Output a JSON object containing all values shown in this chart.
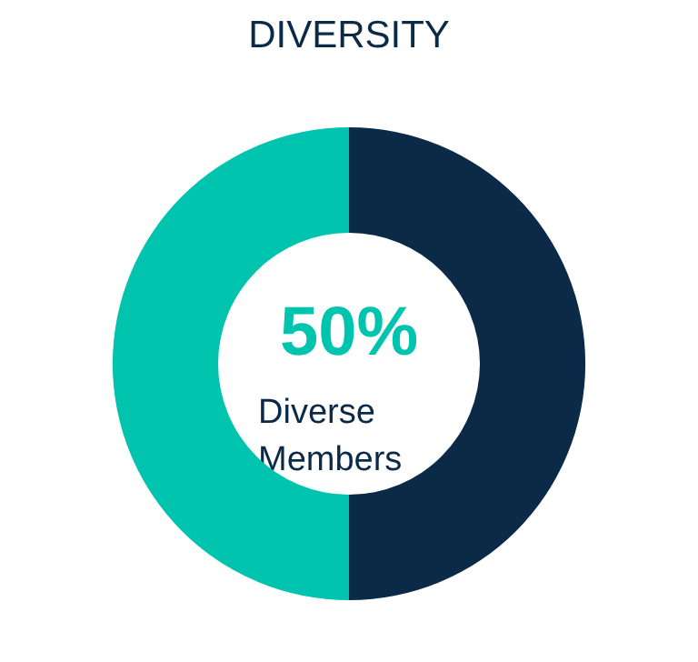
{
  "chart_data": {
    "type": "donut",
    "title": "DIVERSITY",
    "categories": [
      null,
      null
    ],
    "values": [
      50,
      50
    ],
    "colors": [
      "#0b2a47",
      "#00c4ad"
    ],
    "annotations": [
      "50%",
      "Diverse Members"
    ]
  }
}
